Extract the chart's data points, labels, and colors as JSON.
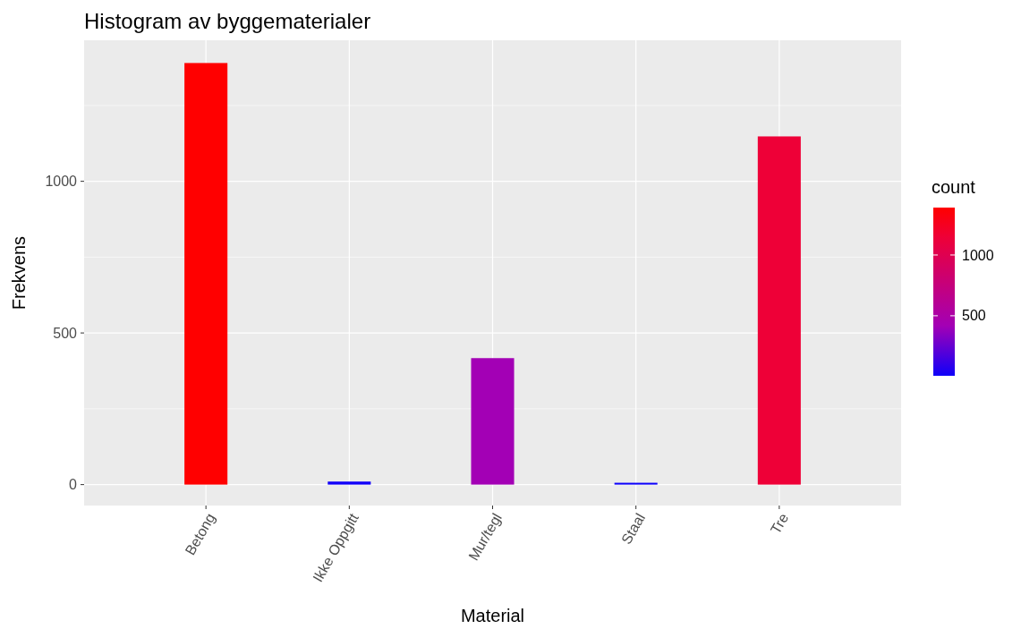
{
  "chart_data": {
    "type": "bar",
    "title": "Histogram av byggematerialer",
    "xlabel": "Material",
    "ylabel": "Frekvens",
    "clabel": "count",
    "categories": [
      "Betong",
      "Ikke Oppgitt",
      "Mur/tegl",
      "Staal",
      "Tre"
    ],
    "values": [
      1390,
      10,
      417,
      6,
      1148
    ],
    "colors": [
      "#ff0000",
      "#1100f8",
      "#a300b5",
      "#0c00fa",
      "#ee0037"
    ],
    "ylim": [
      -69,
      1465
    ],
    "yticks": [
      0,
      500,
      1000
    ],
    "grid": true,
    "clim": [
      6,
      1390
    ],
    "cticks": [
      500,
      1000
    ]
  }
}
